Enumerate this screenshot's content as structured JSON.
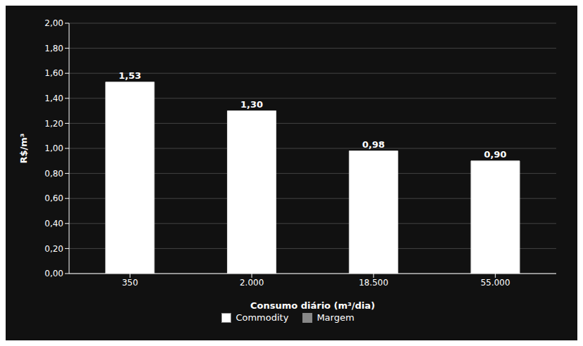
{
  "chart_data": {
    "type": "bar",
    "categories": [
      "350",
      "2.000",
      "18.500",
      "55.000"
    ],
    "values": [
      1.53,
      1.3,
      0.98,
      0.9
    ],
    "value_labels": [
      "1,53",
      "1,30",
      "0,98",
      "0,90"
    ],
    "data_labels": true,
    "color": "#ffffff",
    "background_color": "#111111",
    "text_color": "#ffffff",
    "xlabel": "Consumo diário (m³/dia)",
    "ylabel": "R$/m³",
    "ylim": [
      0,
      2.0
    ],
    "yticks": [
      {
        "value": 0.0,
        "label": "0,00"
      },
      {
        "value": 0.2,
        "label": "0,20"
      },
      {
        "value": 0.4,
        "label": "0,40"
      },
      {
        "value": 0.6,
        "label": "0,60"
      },
      {
        "value": 0.8,
        "label": "0,80"
      },
      {
        "value": 1.0,
        "label": "1,00"
      },
      {
        "value": 1.2,
        "label": "1,20"
      },
      {
        "value": 1.4,
        "label": "1,40"
      },
      {
        "value": 1.6,
        "label": "1,60"
      },
      {
        "value": 1.8,
        "label": "1,80"
      },
      {
        "value": 2.0,
        "label": "2,00"
      }
    ],
    "grid": true,
    "legend": "bottom",
    "legend_labels": [
      "Commodity",
      "Margem"
    ],
    "legend_colors": [
      "#ffffff",
      "#888888"
    ]
  }
}
